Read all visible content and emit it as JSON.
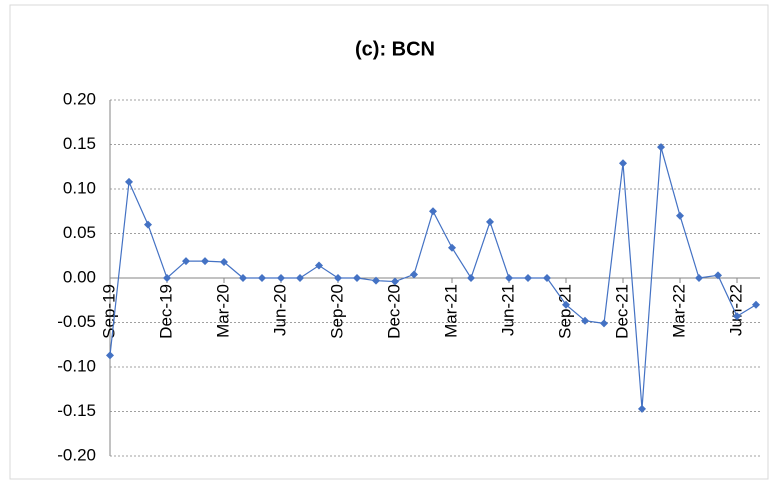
{
  "chart_data": {
    "type": "line",
    "title": "(c): BCN",
    "categories": [
      "Sep-19",
      null,
      null,
      "Dec-19",
      null,
      null,
      "Mar-20",
      null,
      null,
      "Jun-20",
      null,
      null,
      "Sep-20",
      null,
      null,
      "Dec-20",
      null,
      null,
      "Mar-21",
      null,
      null,
      "Jun-21",
      null,
      null,
      "Sep-21",
      null,
      null,
      "Dec-21",
      null,
      null,
      "Mar-22",
      null,
      null,
      "Jun-22",
      null
    ],
    "series": [
      {
        "name": "BCN",
        "color": "#4472c4",
        "values": [
          -0.087,
          0.108,
          0.06,
          0,
          0.019,
          0.019,
          0.018,
          0,
          0,
          0,
          0,
          0.014,
          0,
          0,
          -0.003,
          -0.004,
          0.004,
          0.075,
          0.034,
          0,
          0.063,
          0,
          0,
          0,
          -0.03,
          -0.048,
          -0.051,
          0.129,
          -0.147,
          0.147,
          0.07,
          0,
          0.003,
          -0.043,
          -0.03
        ]
      }
    ],
    "ylim": [
      -0.2,
      0.2
    ],
    "yticks": [
      {
        "value": -0.2,
        "label": "-0.20"
      },
      {
        "value": -0.15,
        "label": "-0.15"
      },
      {
        "value": -0.1,
        "label": "-0.10"
      },
      {
        "value": -0.05,
        "label": "-0.05"
      },
      {
        "value": 0,
        "label": "0.00"
      },
      {
        "value": 0.05,
        "label": "0.05"
      },
      {
        "value": 0.1,
        "label": "0.10"
      },
      {
        "value": 0.15,
        "label": "0.15"
      },
      {
        "value": 0.2,
        "label": "0.20"
      }
    ],
    "grid": true
  }
}
